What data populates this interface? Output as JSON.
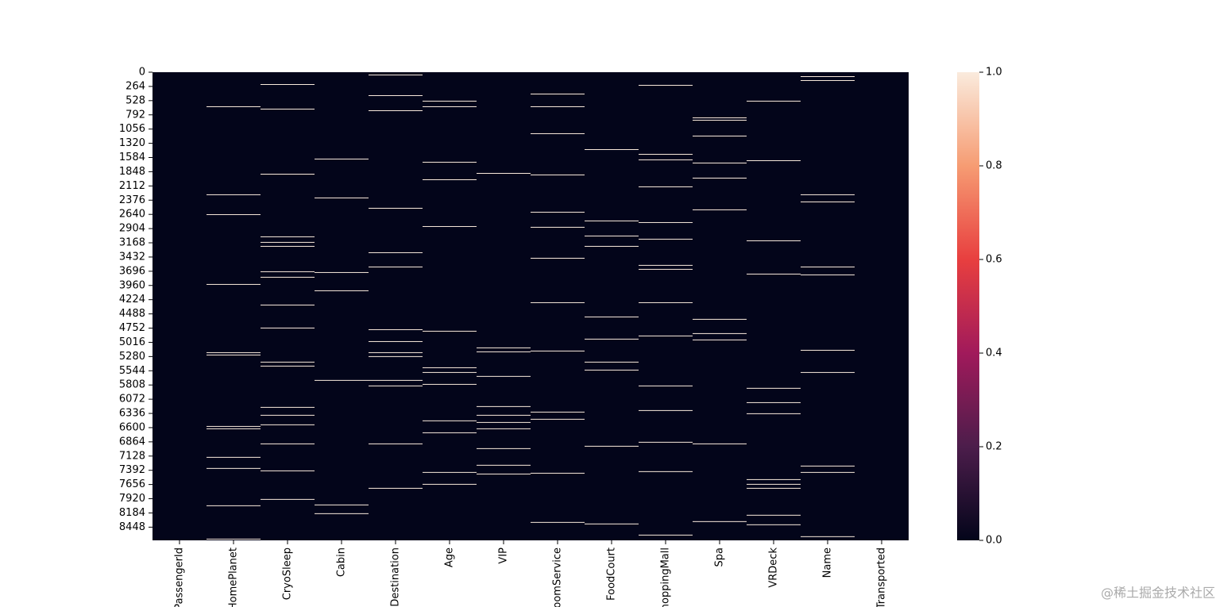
{
  "chart_data": {
    "type": "heatmap",
    "columns": [
      "PassengerId",
      "HomePlanet",
      "CryoSleep",
      "Cabin",
      "Destination",
      "Age",
      "VIP",
      "RoomService",
      "FoodCourt",
      "ShoppingMall",
      "Spa",
      "VRDeck",
      "Name",
      "Transported"
    ],
    "missing_rows": [
      [],
      [
        633,
        2268,
        2637,
        3933,
        5200,
        5244,
        6570,
        6614,
        7144,
        7350,
        8043,
        8662
      ],
      [
        221,
        678,
        1886,
        3049,
        3152,
        3226,
        3697,
        3800,
        4316,
        4743,
        5376,
        5450,
        6216,
        6363,
        6540,
        6894,
        7395,
        7925
      ],
      [
        1605,
        2327,
        3712,
        4051,
        5715,
        8028,
        8190
      ],
      [
        44,
        427,
        707,
        2519,
        3344,
        3609,
        4773,
        4994,
        5200,
        5273,
        5715,
        5818,
        6894,
        7719
      ],
      [
        530,
        633,
        1664,
        1989,
        2858,
        4802,
        5480,
        5568,
        5789,
        6466,
        6688,
        7424,
        7645
      ],
      [
        1871,
        5111,
        5185,
        5641,
        6201,
        6363,
        6496,
        6614,
        6982,
        7291,
        7454
      ],
      [
        398,
        633,
        1134,
        1900,
        2592,
        2872,
        3447,
        4272,
        5170,
        6304,
        6437,
        7439,
        8352
      ],
      [
        1429,
        2754,
        3034,
        3226,
        4537,
        4949,
        5376,
        5524,
        6938,
        8381
      ],
      [
        236,
        1517,
        1620,
        2121,
        2784,
        3093,
        3579,
        3653,
        4272,
        4890,
        5818,
        6275,
        6864,
        7409,
        8588
      ],
      [
        840,
        884,
        1178,
        1679,
        1959,
        2548,
        4581,
        4846,
        4964,
        6894,
        8337
      ],
      [
        530,
        1635,
        3123,
        3741,
        5862,
        6128,
        6334,
        7557,
        7645,
        7719,
        8219,
        8396
      ],
      [
        74,
        147,
        2268,
        2401,
        3609,
        3756,
        5156,
        5568,
        7306,
        7424,
        8617
      ],
      []
    ],
    "ylim": [
      0,
      8693
    ],
    "yticks": [
      0,
      264,
      528,
      792,
      1056,
      1320,
      1584,
      1848,
      2112,
      2376,
      2640,
      2904,
      3168,
      3432,
      3696,
      3960,
      4224,
      4488,
      4752,
      5016,
      5280,
      5544,
      5808,
      6072,
      6336,
      6600,
      6864,
      7128,
      7392,
      7656,
      7920,
      8184,
      8448
    ],
    "clim": [
      0,
      1
    ],
    "colorbar_ticks": [
      {
        "value": 0,
        "label": "0.0"
      },
      {
        "value": 0.2,
        "label": "0.2"
      },
      {
        "value": 0.4,
        "label": "0.4"
      },
      {
        "value": 0.6,
        "label": "0.6"
      },
      {
        "value": 0.8,
        "label": "0.8"
      },
      {
        "value": 1,
        "label": "1.0"
      }
    ],
    "cmap": [
      "#03051a",
      "#4c1d4b",
      "#a11a5b",
      "#e83f3f",
      "#f69c73",
      "#faebdd"
    ]
  },
  "watermark": "@稀土掘金技术社区"
}
